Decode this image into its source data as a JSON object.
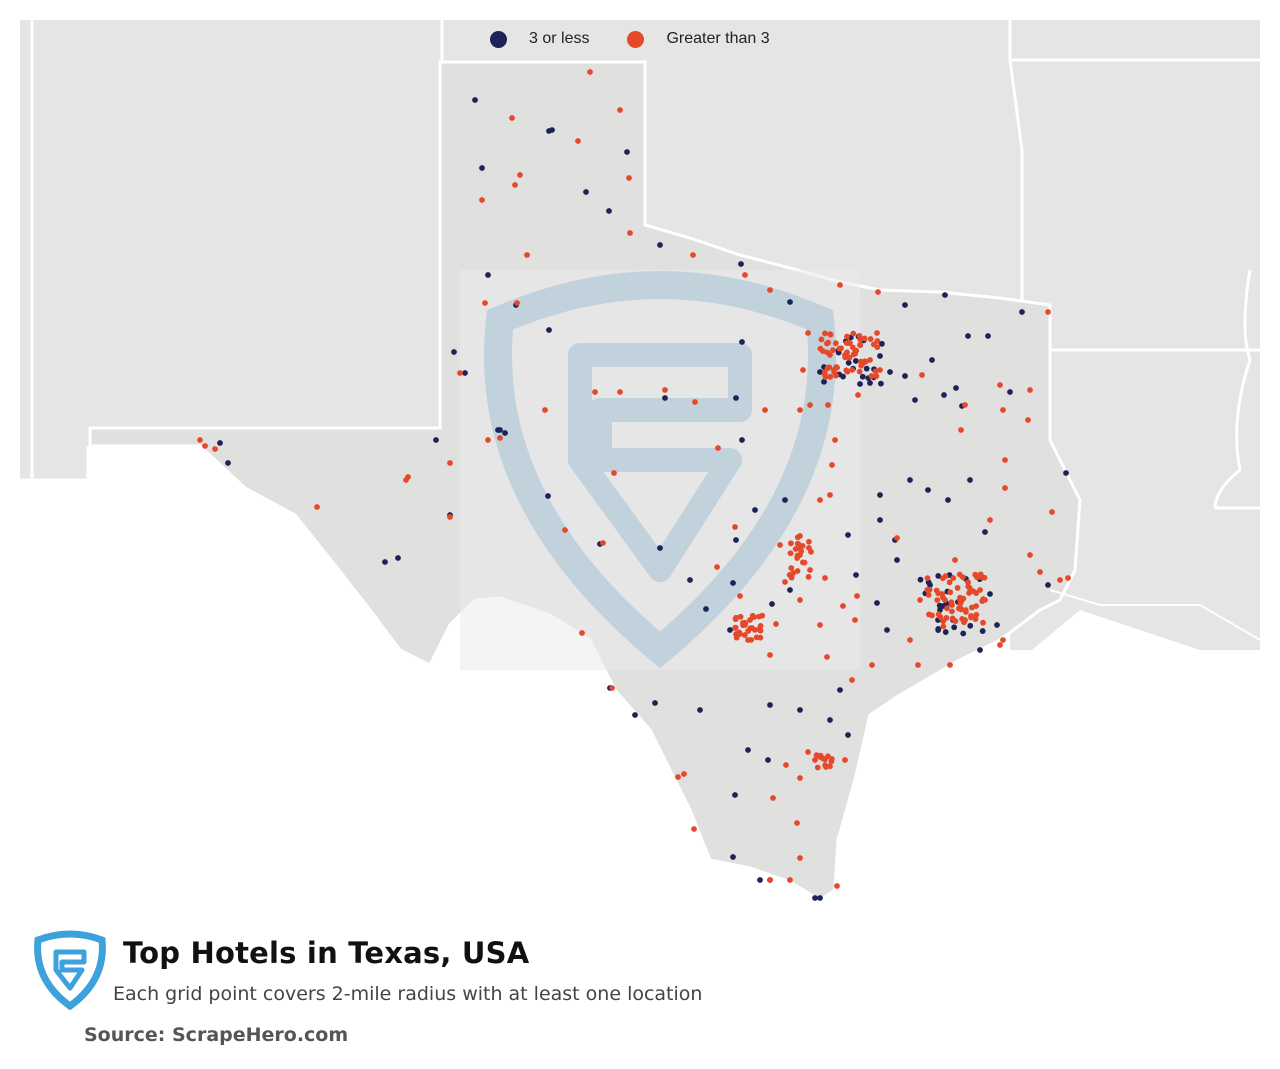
{
  "legend": {
    "items": [
      {
        "label": "3 or less",
        "color": "#1b2358"
      },
      {
        "label": "Greater than 3",
        "color": "#e5492a"
      }
    ]
  },
  "title": "Top Hotels in Texas, USA",
  "subtitle": "Each grid point covers 2-mile radius with at least one location",
  "source": "Source: ScrapeHero.com",
  "colors": {
    "low": "#1b2358",
    "high": "#e5492a",
    "land": "#e5e5e4",
    "border": "#ffffff",
    "texas": "#e0e0df",
    "watermark": "#a9c8da",
    "logo": "#3da1db"
  },
  "icons": [
    "scrapehero-logo-icon",
    "scrapehero-watermark-icon"
  ],
  "chart_data": {
    "type": "scatter",
    "series": [
      {
        "name": "3 or less",
        "color": "#1b2358"
      },
      {
        "name": "Greater than 3",
        "color": "#e5492a"
      }
    ]
  }
}
